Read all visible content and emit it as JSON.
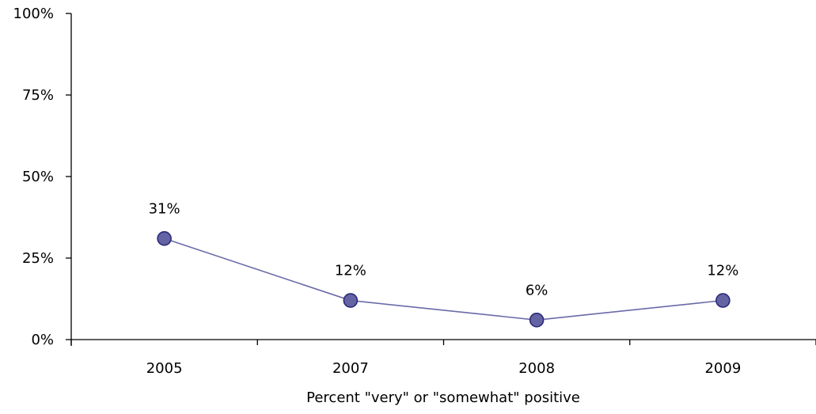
{
  "chart_data": {
    "type": "line",
    "categories": [
      "2005",
      "2007",
      "2008",
      "2009"
    ],
    "series": [
      {
        "values": [
          31,
          12,
          6,
          12
        ],
        "data_labels": [
          "31%",
          "12%",
          "6%",
          "12%"
        ]
      }
    ],
    "y_ticks": [
      "0%",
      "25%",
      "50%",
      "75%",
      "100%"
    ],
    "ylim": [
      0,
      100
    ],
    "xlabel": "Percent \"very\" or \"somewhat\" positive",
    "ylabel": "",
    "title": "",
    "grid": false,
    "legend": "none",
    "colors": {
      "line": "#6a6aa8",
      "marker_fill": "#6464a4",
      "marker_stroke": "#2b2b7a",
      "axis": "#000000"
    }
  }
}
